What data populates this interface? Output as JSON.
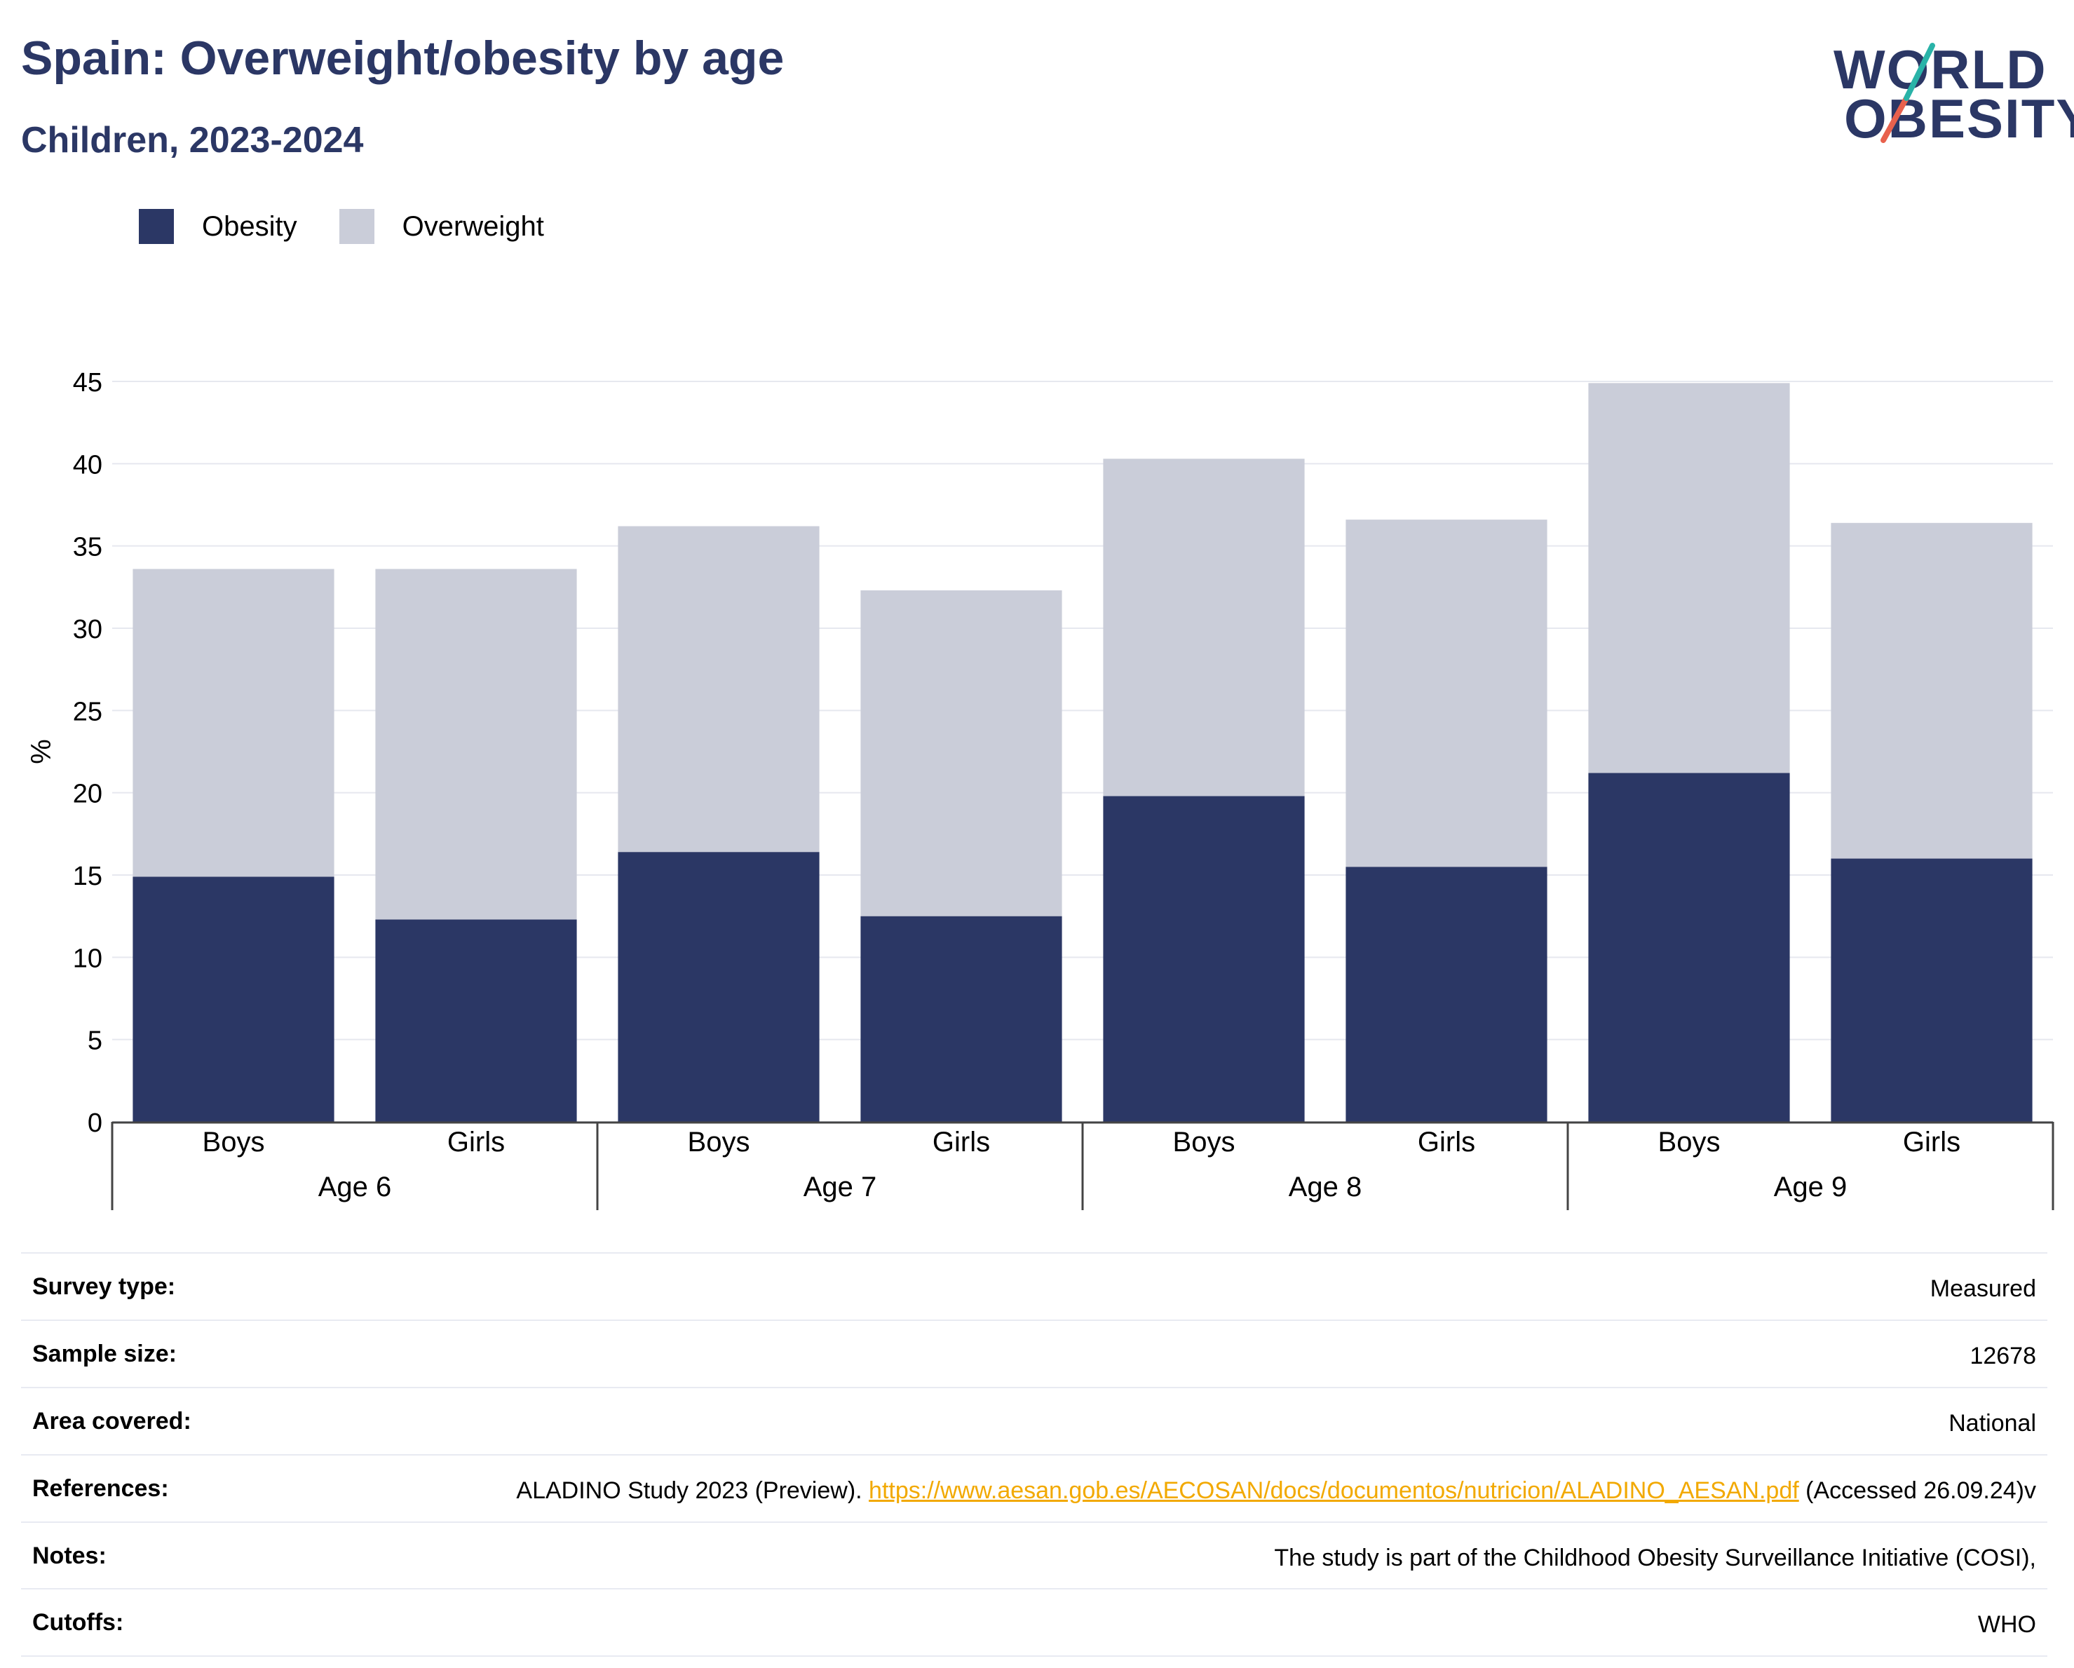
{
  "header": {
    "title": "Spain: Overweight/obesity by age",
    "subtitle": "Children, 2023-2024"
  },
  "logo": {
    "line1": "WORLD",
    "line2": "OBESITY"
  },
  "legend": [
    {
      "label": "Obesity",
      "color": "#2b3765"
    },
    {
      "label": "Overweight",
      "color": "#cacdd9"
    }
  ],
  "chart_data": {
    "type": "bar",
    "stacked": true,
    "groups": [
      "Age 6",
      "Age 7",
      "Age 8",
      "Age 9"
    ],
    "categories": [
      "Boys",
      "Girls",
      "Boys",
      "Girls",
      "Boys",
      "Girls",
      "Boys",
      "Girls"
    ],
    "category_groups": [
      "Age 6",
      "Age 6",
      "Age 7",
      "Age 7",
      "Age 8",
      "Age 8",
      "Age 9",
      "Age 9"
    ],
    "series": [
      {
        "name": "Obesity",
        "color": "#2b3765",
        "values": [
          14.9,
          12.3,
          16.4,
          12.5,
          19.8,
          15.5,
          21.2,
          16.0
        ]
      },
      {
        "name": "Overweight",
        "color": "#cacdd9",
        "values": [
          18.7,
          21.3,
          19.8,
          19.8,
          20.5,
          21.1,
          23.7,
          20.4
        ]
      }
    ],
    "ylabel": "%",
    "ylim": [
      0,
      45
    ],
    "yticks": [
      0,
      5,
      10,
      15,
      20,
      25,
      30,
      35,
      40,
      45
    ],
    "grid": true,
    "legend_position": "top-left"
  },
  "details": [
    {
      "label": "Survey type:",
      "value": "Measured"
    },
    {
      "label": "Sample size:",
      "value": "12678"
    },
    {
      "label": "Area covered:",
      "value": "National"
    },
    {
      "label": "References:",
      "value_prefix": "ALADINO Study 2023 (Preview). ",
      "link": "https://www.aesan.gob.es/AECOSAN/docs/documentos/nutricion/ALADINO_AESAN.pdf",
      "value_suffix": " (Accessed 26.09.24)v"
    },
    {
      "label": "Notes:",
      "value": "The study is part of the Childhood Obesity Surveillance Initiative (COSI),"
    },
    {
      "label": "Cutoffs:",
      "value": "WHO"
    }
  ]
}
